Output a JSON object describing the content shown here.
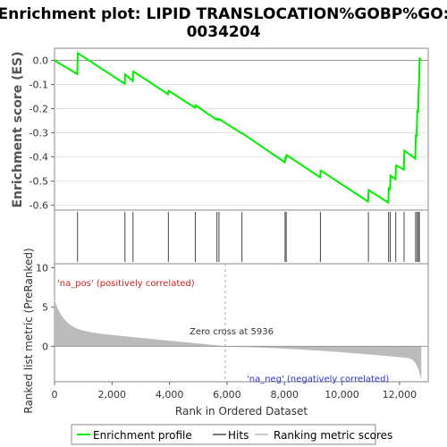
{
  "chart_data": {
    "type": "line",
    "title_line1": "Enrichment plot: LIPID TRANSLOCATION%GOBP%GO:",
    "title_line2": "0034204",
    "ylabel_top": "Enrichment score (ES)",
    "ylabel_bottom": "Ranked list metric (PreRanked)",
    "xlabel": "Rank in Ordered Dataset",
    "x_range": [
      0,
      13000
    ],
    "x_ticks": [
      0,
      2000,
      4000,
      6000,
      8000,
      10000,
      12000
    ],
    "x_tick_labels": [
      "0",
      "2,000",
      "4,000",
      "6,000",
      "8,000",
      "10,000",
      "12,000"
    ],
    "es_range": [
      -0.62,
      0.05
    ],
    "es_ticks": [
      0.0,
      -0.1,
      -0.2,
      -0.3,
      -0.4,
      -0.5,
      -0.6
    ],
    "es_tick_labels": [
      "0.0",
      "-0.1",
      "-0.2",
      "-0.3",
      "-0.4",
      "-0.5",
      "-0.6"
    ],
    "metric_range": [
      -4.5,
      10.5
    ],
    "metric_ticks": [
      10,
      5,
      0
    ],
    "metric_tick_labels": [
      "10",
      "5",
      "0"
    ],
    "hits": [
      800,
      2450,
      2730,
      3960,
      4900,
      5650,
      5720,
      6520,
      8020,
      8060,
      9250,
      10920,
      11620,
      11680,
      11870,
      12160,
      12560,
      12610,
      12660,
      12690
    ],
    "es_points": [
      [
        0,
        0.0
      ],
      [
        790,
        -0.057
      ],
      [
        810,
        0.03
      ],
      [
        2440,
        -0.097
      ],
      [
        2460,
        -0.058
      ],
      [
        2720,
        -0.085
      ],
      [
        2740,
        -0.046
      ],
      [
        3950,
        -0.14
      ],
      [
        3970,
        -0.126
      ],
      [
        4890,
        -0.196
      ],
      [
        4910,
        -0.186
      ],
      [
        5640,
        -0.246
      ],
      [
        5660,
        -0.242
      ],
      [
        5710,
        -0.247
      ],
      [
        5730,
        -0.243
      ],
      [
        6510,
        -0.302
      ],
      [
        6530,
        -0.302
      ],
      [
        8010,
        -0.422
      ],
      [
        8030,
        -0.403
      ],
      [
        8050,
        -0.405
      ],
      [
        8070,
        -0.392
      ],
      [
        9240,
        -0.484
      ],
      [
        9260,
        -0.456
      ],
      [
        10910,
        -0.585
      ],
      [
        10930,
        -0.537
      ],
      [
        11610,
        -0.589
      ],
      [
        11630,
        -0.53
      ],
      [
        11670,
        -0.533
      ],
      [
        11690,
        -0.477
      ],
      [
        11860,
        -0.492
      ],
      [
        11880,
        -0.435
      ],
      [
        12150,
        -0.452
      ],
      [
        12170,
        -0.374
      ],
      [
        12550,
        -0.407
      ],
      [
        12570,
        -0.31
      ],
      [
        12600,
        -0.312
      ],
      [
        12620,
        -0.21
      ],
      [
        12650,
        -0.212
      ],
      [
        12670,
        -0.11
      ],
      [
        12680,
        -0.11
      ],
      [
        12700,
        0.007
      ],
      [
        12760,
        0.003
      ]
    ],
    "zero_cross": 5936,
    "zero_cross_label": "Zero cross at 5936",
    "pos_label": "'na_pos' (positively correlated)",
    "neg_label": "'na_neg' (negatively correlated)",
    "series": [
      {
        "name": "Enrichment profile",
        "color": "#00ee00"
      },
      {
        "name": "Hits",
        "color": "#777777"
      },
      {
        "name": "Ranking metric scores",
        "color": "#cccccc"
      }
    ],
    "heatmap_colors": [
      "#e8001e",
      "#ee3333",
      "#f35a5a",
      "#f88585",
      "#fbb0b0",
      "#fdd5e0",
      "#e9e9f7",
      "#c8c8f0",
      "#9999e8",
      "#6a6ae0",
      "#3d3dd6",
      "#1a1acc"
    ]
  }
}
